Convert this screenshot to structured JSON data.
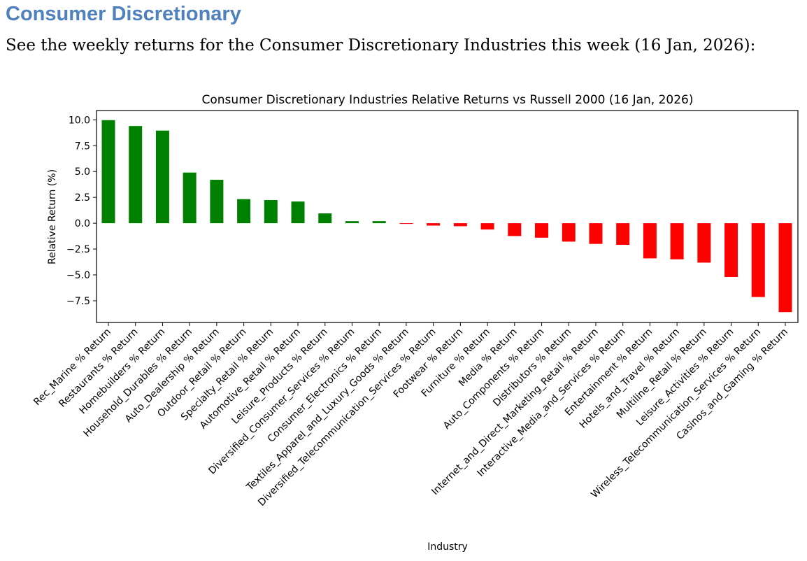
{
  "heading": "Consumer Discretionary",
  "intro": "See the weekly returns for the Consumer Discretionary Industries this week (16 Jan, 2026):",
  "colors": {
    "heading": "#4f81bd",
    "positive": "#008000",
    "negative": "#ff0000"
  },
  "chart_data": {
    "type": "bar",
    "title": "Consumer Discretionary Industries Relative Returns vs Russell 2000 (16 Jan, 2026)",
    "xlabel": "Industry",
    "ylabel": "Relative Return (%)",
    "ylim": [
      -9.6,
      10.9
    ],
    "yticks": [
      -7.5,
      -5.0,
      -2.5,
      0.0,
      2.5,
      5.0,
      7.5,
      10.0
    ],
    "ytick_labels": [
      "−7.5",
      "−5.0",
      "−2.5",
      "0.0",
      "2.5",
      "5.0",
      "7.5",
      "10.0"
    ],
    "grid": false,
    "categories": [
      "Rec_Marine % Return",
      "Restaurants % Return",
      "Homebuilders % Return",
      "Household_Durables % Return",
      "Auto_Dealership % Return",
      "Outdoor_Retail % Return",
      "Specialty_Retail % Return",
      "Automotive_Retail % Return",
      "Leisure_Products % Return",
      "Diversified_Consumer_Services % Return",
      "Consumer_Electronics % Return",
      "Textiles_Apparel_and_Luxury_Goods % Return",
      "Diversified_Telecommunication_Services % Return",
      "Footwear % Return",
      "Furniture % Return",
      "Media % Return",
      "Auto_Components % Return",
      "Distributors % Return",
      "Internet_and_Direct_Marketing_Retail % Return",
      "Interactive_Media_and_Services % Return",
      "Entertainment % Return",
      "Hotels_and_Travel % Return",
      "Multiline_Retail % Return",
      "Leisure_Activities % Return",
      "Wireless_Telecommunication_Services % Return",
      "Casinos_and_Gaming % Return"
    ],
    "values": [
      9.97,
      9.4,
      8.96,
      4.9,
      4.2,
      2.33,
      2.24,
      2.1,
      0.95,
      0.2,
      0.2,
      -0.05,
      -0.23,
      -0.29,
      -0.61,
      -1.24,
      -1.4,
      -1.78,
      -2.0,
      -2.09,
      -3.4,
      -3.49,
      -3.81,
      -5.2,
      -7.14,
      -8.6
    ]
  }
}
